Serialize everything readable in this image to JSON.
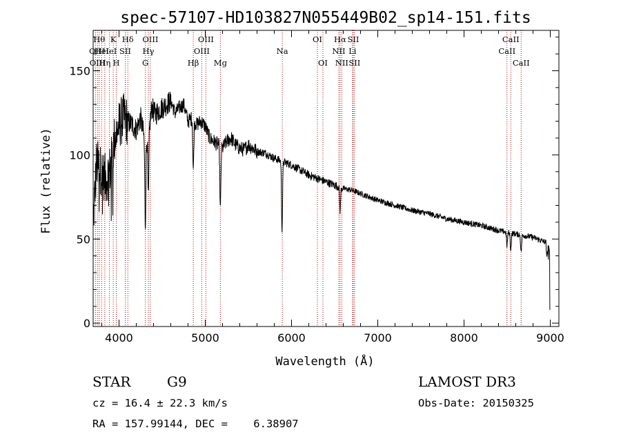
{
  "chart_data": {
    "type": "line",
    "title": "spec-57107-HD103827N055449B02_sp14-151.fits",
    "xlabel": "Wavelength (Å)",
    "ylabel": "Flux (relative)",
    "xlim": [
      3700,
      9100
    ],
    "ylim": [
      -2,
      174
    ],
    "x_ticks": [
      4000,
      5000,
      6000,
      7000,
      8000,
      9000
    ],
    "y_ticks": [
      0,
      50,
      100,
      150
    ],
    "grid": false,
    "spectrum_anchors": {
      "x": [
        3700,
        3740,
        3800,
        3850,
        3900,
        3950,
        4000,
        4050,
        4100,
        4150,
        4200,
        4250,
        4300,
        4340,
        4380,
        4420,
        4450,
        4500,
        4550,
        4600,
        4650,
        4700,
        4750,
        4800,
        4850,
        4900,
        4950,
        5000,
        5050,
        5100,
        5150,
        5200,
        5250,
        5300,
        5350,
        5400,
        5450,
        5500,
        5600,
        5700,
        5800,
        5900,
        6000,
        6100,
        6200,
        6300,
        6400,
        6500,
        6600,
        6700,
        6800,
        6900,
        7000,
        7200,
        7400,
        7600,
        7800,
        8000,
        8200,
        8400,
        8600,
        8800,
        8950,
        9000
      ],
      "y": [
        60,
        95,
        90,
        85,
        92,
        110,
        118,
        122,
        120,
        118,
        115,
        122,
        108,
        112,
        128,
        124,
        126,
        128,
        130,
        132,
        125,
        128,
        130,
        120,
        122,
        118,
        120,
        117,
        110,
        108,
        106,
        104,
        108,
        110,
        106,
        104,
        103,
        106,
        102,
        101,
        98,
        96,
        94,
        91,
        88,
        86,
        84,
        82,
        80,
        79,
        77,
        75,
        73,
        70,
        67,
        65,
        62,
        60,
        58,
        55,
        53,
        51,
        48,
        45
      ]
    },
    "series": [
      {
        "name": "Flux",
        "color": "#000000"
      }
    ],
    "absorption_dips": [
      {
        "x": 4305,
        "depth": 50
      },
      {
        "x": 4340,
        "depth": 40
      },
      {
        "x": 4861,
        "depth": 30
      },
      {
        "x": 5175,
        "depth": 38
      },
      {
        "x": 5890,
        "depth": 40
      },
      {
        "x": 6563,
        "depth": 14
      },
      {
        "x": 8498,
        "depth": 8
      },
      {
        "x": 8542,
        "depth": 10
      },
      {
        "x": 8662,
        "depth": 10
      }
    ],
    "line_markers": [
      {
        "x": 3727,
        "label": "OII",
        "row": 1
      },
      {
        "x": 3750,
        "label": "OIII",
        "row": 2
      },
      {
        "x": 3770,
        "label": "Hθ",
        "row": 0
      },
      {
        "x": 3798,
        "label": "HeI",
        "row": 1
      },
      {
        "x": 3835,
        "label": "Hη",
        "row": 2
      },
      {
        "x": 3889,
        "label": "HeI",
        "row": 1
      },
      {
        "x": 3933,
        "label": "K",
        "row": 0
      },
      {
        "x": 3968,
        "label": "H",
        "row": 2
      },
      {
        "x": 4072,
        "label": "SII",
        "row": 1
      },
      {
        "x": 4102,
        "label": "Hδ",
        "row": 0
      },
      {
        "x": 4305,
        "label": "G",
        "row": 2
      },
      {
        "x": 4340,
        "label": "Hγ",
        "row": 1
      },
      {
        "x": 4363,
        "label": "OIII",
        "row": 0
      },
      {
        "x": 4861,
        "label": "Hβ",
        "row": 2
      },
      {
        "x": 4959,
        "label": "OIII",
        "row": 1
      },
      {
        "x": 5007,
        "label": "OIII",
        "row": 0
      },
      {
        "x": 5175,
        "label": "Mg",
        "row": 2
      },
      {
        "x": 5893,
        "label": "Na",
        "row": 1
      },
      {
        "x": 6300,
        "label": "OI",
        "row": 0
      },
      {
        "x": 6364,
        "label": "OI",
        "row": 2
      },
      {
        "x": 6548,
        "label": "NII",
        "row": 1
      },
      {
        "x": 6563,
        "label": "Hα",
        "row": 0
      },
      {
        "x": 6583,
        "label": "NII",
        "row": 2
      },
      {
        "x": 6707,
        "label": "Li",
        "row": 1
      },
      {
        "x": 6716,
        "label": "SII",
        "row": 0
      },
      {
        "x": 6731,
        "label": "SII",
        "row": 2
      },
      {
        "x": 8498,
        "label": "CaII",
        "row": 1
      },
      {
        "x": 8542,
        "label": "CaII",
        "row": 0
      },
      {
        "x": 8662,
        "label": "CaII",
        "row": 2
      }
    ],
    "marker_color": "#b40000"
  },
  "info": {
    "object_class": "STAR",
    "subclass": "G9",
    "survey": "LAMOST DR3",
    "redshift_line": "cz = 16.4 ± 22.3 km/s",
    "obs_date": "Obs-Date: 20150325",
    "coords_line": "RA = 157.99144, DEC =    6.38907"
  }
}
